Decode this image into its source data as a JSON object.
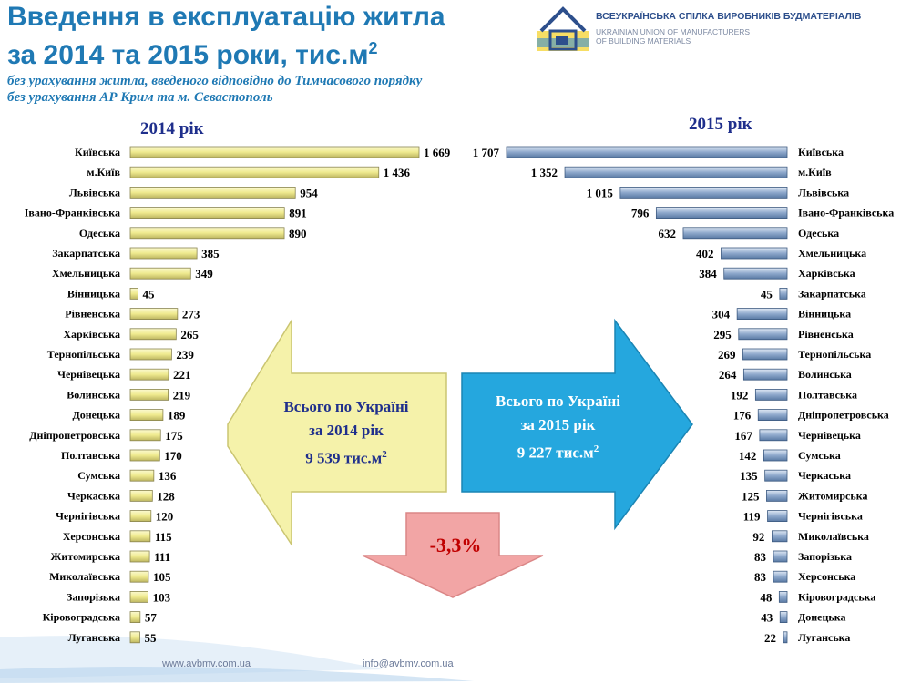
{
  "header": {
    "title_line1": "Введення в експлуатацію житла",
    "title_line2": "за 2014 та 2015 роки, тис.м",
    "title_sup": "2",
    "subtitle_line1": "без урахування житла, введеного відповідно до Тимчасового порядку",
    "subtitle_line2": "без урахування АР Крим та м. Севастополь"
  },
  "logo": {
    "org_ua": "ВСЕУКРАЇНСЬКА СПІЛКА ВИРОБНИКІВ БУДМАТЕРІАЛІВ",
    "org_en": "UKRAINIAN UNION OF MANUFACTURERS\nOF BUILDING MATERIALS",
    "icon": "house-logo-icon"
  },
  "colors": {
    "bar_2014": "#f0ec99",
    "bar_2014_edge": "#8a8550",
    "bar_2015": "#8ea9cc",
    "bar_2015_edge": "#3d5a80",
    "arrow_left": "#f5f2a6",
    "arrow_right": "#1aa3dd",
    "arrow_down": "#f2a1a1",
    "title": "#1f79b4"
  },
  "callouts": {
    "left": {
      "line1": "Всього по Україні",
      "line2": "за 2014 рік",
      "line3": "9 539 тис.м",
      "sup": "2"
    },
    "right": {
      "line1": "Всього по Україні",
      "line2": "за 2015 рік",
      "line3": "9 227 тис.м",
      "sup": "2"
    },
    "change": "-3,3%"
  },
  "footer": {
    "website": "www.avbmv.com.ua",
    "email": "info@avbmv.com.ua"
  },
  "chart_data": [
    {
      "type": "bar",
      "orientation": "horizontal",
      "title": "2014 рік",
      "categories": [
        "Київська",
        "м.Київ",
        "Львівська",
        "Івано-Франківська",
        "Одеська",
        "Закарпатська",
        "Хмельницька",
        "Вінницька",
        "Рівненська",
        "Харківська",
        "Тернопільська",
        "Чернівецька",
        "Волинська",
        "Донецька",
        "Дніпропетровська",
        "Полтавська",
        "Сумська",
        "Черкаська",
        "Чернігівська",
        "Херсонська",
        "Житомирська",
        "Миколаївська",
        "Запорізька",
        "Кіровоградська",
        "Луганська"
      ],
      "values": [
        1669,
        1436,
        954,
        891,
        890,
        385,
        349,
        45,
        273,
        265,
        239,
        221,
        219,
        189,
        175,
        170,
        136,
        128,
        120,
        115,
        111,
        105,
        103,
        57,
        55
      ],
      "value_labels": [
        "1 669",
        "1 436",
        "954",
        "891",
        "890",
        "385",
        "349",
        "45",
        "273",
        "265",
        "239",
        "221",
        "219",
        "189",
        "175",
        "170",
        "136",
        "128",
        "120",
        "115",
        "111",
        "105",
        "103",
        "57",
        "55"
      ],
      "xlim": [
        0,
        1669
      ]
    },
    {
      "type": "bar",
      "orientation": "horizontal",
      "title": "2015 рік",
      "categories": [
        "Київська",
        "м.Київ",
        "Львівська",
        "Івано-Франківська",
        "Одеська",
        "Хмельницька",
        "Харківська",
        "Закарпатська",
        "Вінницька",
        "Рівненська",
        "Тернопільська",
        "Волинська",
        "Полтавська",
        "Дніпропетровська",
        "Чернівецька",
        "Сумська",
        "Черкаська",
        "Житомирська",
        "Чернігівська",
        "Миколаївська",
        "Запорізька",
        "Херсонська",
        "Кіровоградська",
        "Донецька",
        "Луганська"
      ],
      "values": [
        1707,
        1352,
        1015,
        796,
        632,
        402,
        384,
        45,
        304,
        295,
        269,
        264,
        192,
        176,
        167,
        142,
        135,
        125,
        119,
        92,
        83,
        83,
        48,
        43,
        22
      ],
      "value_labels": [
        "1 707",
        "1 352",
        "1 015",
        "796",
        "632",
        "402",
        "384",
        "45",
        "304",
        "295",
        "269",
        "264",
        "192",
        "176",
        "167",
        "142",
        "135",
        "125",
        "119",
        "92",
        "83",
        "83",
        "48",
        "43",
        "22"
      ],
      "xlim": [
        0,
        1707
      ]
    }
  ]
}
